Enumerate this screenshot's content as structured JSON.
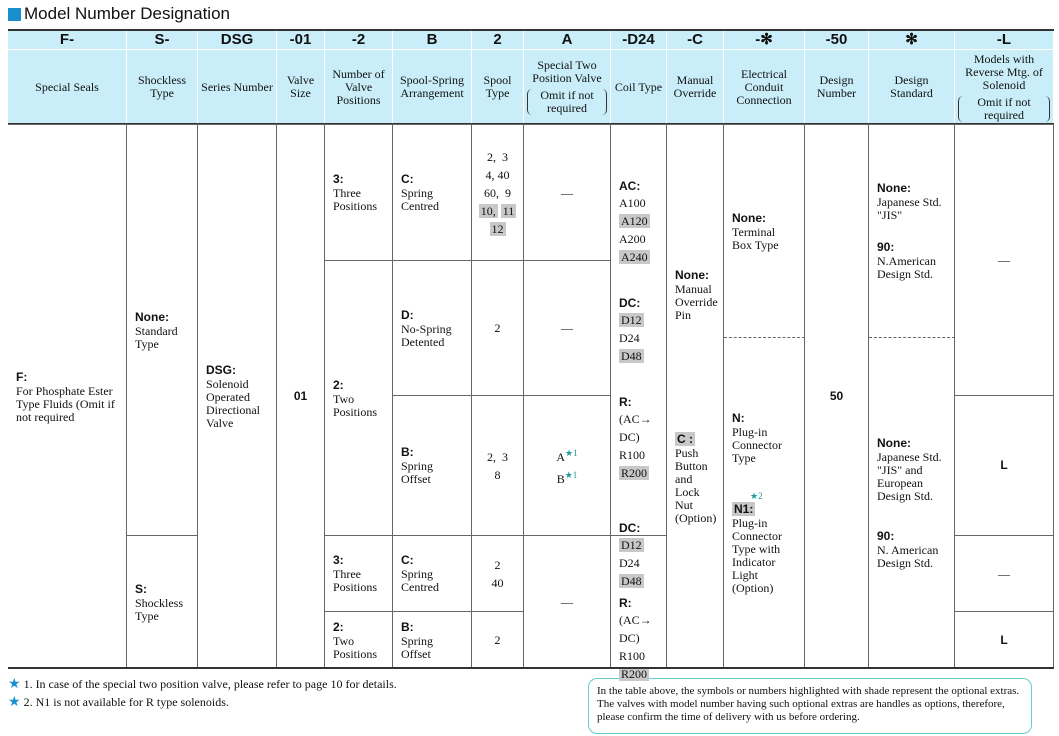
{
  "title": "Model Number Designation",
  "codes": [
    "F-",
    "S-",
    "DSG",
    "-01",
    "-2",
    "B",
    "2",
    "A",
    "-D24",
    "-C",
    "-✻",
    "-50",
    "✻",
    "-L"
  ],
  "headers": [
    "Special Seals",
    "Shockless Type",
    "Series Number",
    "Valve Size",
    "Number of Valve Positions",
    "Spool-Spring Arrangement",
    "Spool Type",
    "Special Two Position Valve",
    "Coil Type",
    "Manual Override",
    "Electrical Conduit Connection",
    "Design Number",
    "Design Standard",
    "Models with Reverse Mtg. of Solenoid"
  ],
  "header_notes": [
    "Omit if not required",
    "Omit if not required"
  ],
  "body": [
    {
      "parts": [
        {
          "label": "F:",
          "text": "For Phosphate Ester Type Fluids (Omit if not required"
        }
      ]
    },
    {
      "parts": [
        {
          "label": "None:",
          "text": "Standard Type"
        }
      ]
    },
    {
      "parts": [
        {
          "label": "S:",
          "text": "Shockless Type"
        }
      ]
    },
    {
      "parts": [
        {
          "label": "DSG:",
          "text": "Solenoid Operated Directional Valve"
        }
      ]
    },
    {
      "parts": [
        {
          "label": "01"
        }
      ]
    },
    {
      "parts": [
        {
          "label": "3:",
          "text": "Three Positions"
        }
      ]
    },
    {
      "parts": [
        {
          "label": "2:",
          "text": "Two Positions"
        }
      ]
    },
    {
      "parts": [
        {
          "label": "3:",
          "text": "Three Positions"
        }
      ]
    },
    {
      "parts": [
        {
          "label": "2:",
          "text": "Two Positions"
        }
      ]
    },
    {
      "parts": [
        {
          "label": "C:",
          "text": "Spring Centred"
        }
      ]
    },
    {
      "parts": [
        {
          "label": "D:",
          "text": "No-Spring Detented"
        }
      ]
    },
    {
      "parts": [
        {
          "label": "B:",
          "text": "Spring Offset"
        }
      ]
    },
    {
      "parts": [
        {
          "label": "C:",
          "text": "Spring Centred"
        }
      ]
    },
    {
      "parts": [
        {
          "label": "B:",
          "text": "Spring Offset"
        }
      ]
    },
    {
      "parts": [
        {
          "lines": [
            "2,  3",
            "4, 40",
            "60,  9",
            "10,",
            "11",
            "12"
          ]
        }
      ]
    },
    {
      "parts": [
        {
          "lines": [
            "2"
          ]
        }
      ]
    },
    {
      "parts": [
        {
          "lines": [
            "2,  3",
            "8"
          ]
        }
      ]
    },
    {
      "parts": [
        {
          "lines": [
            "2",
            "40"
          ]
        }
      ]
    },
    {
      "parts": [
        {
          "lines": [
            "2"
          ]
        }
      ]
    },
    {
      "parts": [
        {
          "lines": [
            "—"
          ]
        }
      ]
    },
    {
      "parts": [
        {
          "lines": [
            "—"
          ]
        }
      ]
    },
    {
      "parts": [
        {
          "lines": [
            "A",
            "B"
          ],
          "notes": [
            "★1",
            "★1"
          ]
        }
      ]
    },
    {
      "parts": [
        {
          "lines": [
            "—"
          ]
        }
      ]
    },
    {
      "parts": [
        {
          "label": "AC:",
          "lines": [
            "A100",
            "A120",
            "A200",
            "A240"
          ]
        },
        {
          "label": "DC:",
          "lines": [
            "D12",
            "D24",
            "D48"
          ]
        },
        {
          "label": "R:",
          "lines": [
            "(AC→",
            "DC)",
            "R100",
            "R200"
          ]
        }
      ]
    },
    {
      "parts": [
        {
          "label": "DC:",
          "lines": [
            "D12",
            "D24",
            "D48"
          ]
        },
        {
          "label": "R:",
          "lines": [
            "(AC→",
            "DC)",
            "R100",
            "R200"
          ]
        }
      ]
    },
    {
      "parts": [
        {
          "label": "None:",
          "text": "Manual Override Pin"
        },
        {
          "label": "C :",
          "text": "Push Button and Lock Nut (Option)"
        }
      ]
    },
    {
      "parts": [
        {
          "label": "None:",
          "text": "Terminal Box Type"
        }
      ]
    },
    {
      "parts": [
        {
          "label": "N:",
          "text": "Plug-in Connector Type"
        },
        {
          "note": "★2",
          "label": "N1:",
          "text": "Plug-in Connector Type with Indicator Light (Option)"
        }
      ]
    },
    {
      "parts": [
        {
          "label": "50"
        }
      ]
    },
    {
      "parts": [
        {
          "label": "None:",
          "text": "Japanese Std. \"JIS\""
        },
        {
          "label": "90:",
          "text": "N.American Design Std."
        }
      ]
    },
    {
      "parts": [
        {
          "label": "None:",
          "text": "Japanese Std. \"JIS\" and European Design Std."
        },
        {
          "label": "90:",
          "text": "N. American Design Std."
        }
      ]
    },
    {
      "parts": [
        {
          "lines": [
            "—"
          ]
        }
      ]
    },
    {
      "parts": [
        {
          "label": "L"
        }
      ]
    },
    {
      "parts": [
        {
          "lines": [
            "—"
          ]
        }
      ]
    },
    {
      "parts": [
        {
          "label": "L"
        }
      ]
    }
  ],
  "footnotes": [
    {
      "mark": "★",
      "number": "1.",
      "text": "In case of the special two position valve, please refer to page 10 for details."
    },
    {
      "mark": "★",
      "number": "2.",
      "text": "N1 is not available for R type solenoids."
    }
  ],
  "note": "In the table above, the symbols or numbers highlighted with shade represent the optional extras. The valves with model number having such optional extras are handles as options, therefore, please confirm the time of delivery with us before ordering."
}
